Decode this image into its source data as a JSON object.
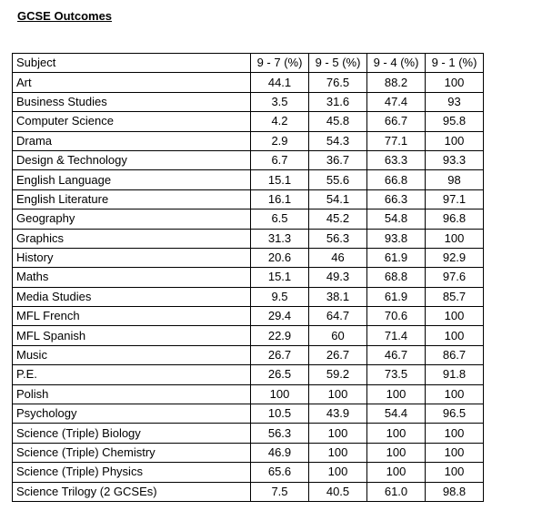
{
  "title": "GCSE Outcomes",
  "table": {
    "headers": [
      "Subject",
      "9 - 7 (%)",
      "9 - 5 (%)",
      "9 - 4 (%)",
      "9 - 1 (%)"
    ],
    "rows": [
      [
        "Art",
        "44.1",
        "76.5",
        "88.2",
        "100"
      ],
      [
        "Business Studies",
        "3.5",
        "31.6",
        "47.4",
        "93"
      ],
      [
        "Computer Science",
        "4.2",
        "45.8",
        "66.7",
        "95.8"
      ],
      [
        "Drama",
        "2.9",
        "54.3",
        "77.1",
        "100"
      ],
      [
        "Design & Technology",
        "6.7",
        "36.7",
        "63.3",
        "93.3"
      ],
      [
        "English Language",
        "15.1",
        "55.6",
        "66.8",
        "98"
      ],
      [
        "English Literature",
        "16.1",
        "54.1",
        "66.3",
        "97.1"
      ],
      [
        "Geography",
        "6.5",
        "45.2",
        "54.8",
        "96.8"
      ],
      [
        "Graphics",
        "31.3",
        "56.3",
        "93.8",
        "100"
      ],
      [
        "History",
        "20.6",
        "46",
        "61.9",
        "92.9"
      ],
      [
        "Maths",
        "15.1",
        "49.3",
        "68.8",
        "97.6"
      ],
      [
        "Media Studies",
        "9.5",
        "38.1",
        "61.9",
        "85.7"
      ],
      [
        "MFL French",
        "29.4",
        "64.7",
        "70.6",
        "100"
      ],
      [
        "MFL Spanish",
        "22.9",
        "60",
        "71.4",
        "100"
      ],
      [
        "Music",
        "26.7",
        "26.7",
        "46.7",
        "86.7"
      ],
      [
        "P.E.",
        "26.5",
        "59.2",
        "73.5",
        "91.8"
      ],
      [
        "Polish",
        "100",
        "100",
        "100",
        "100"
      ],
      [
        "Psychology",
        "10.5",
        "43.9",
        "54.4",
        "96.5"
      ],
      [
        "Science (Triple) Biology",
        "56.3",
        "100",
        "100",
        "100"
      ],
      [
        "Science (Triple) Chemistry",
        "46.9",
        "100",
        "100",
        "100"
      ],
      [
        "Science (Triple) Physics",
        "65.6",
        "100",
        "100",
        "100"
      ],
      [
        "Science Trilogy (2 GCSEs)",
        "7.5",
        "40.5",
        "61.0",
        "98.8"
      ]
    ]
  }
}
